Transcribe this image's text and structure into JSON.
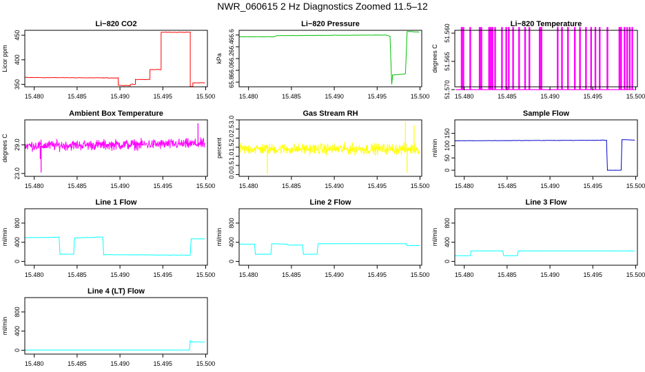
{
  "page": {
    "title": "NWR_060615  2 Hz Diagnostics Zoomed 11.5–12"
  },
  "chart_data": [
    {
      "type": "line",
      "title": "Li−820 CO2",
      "ylabel": "Licor ppm",
      "color": "#ff0000",
      "kind": "step",
      "xlim": [
        15.4789,
        15.5002
      ],
      "ylim": [
        345,
        460
      ],
      "xticks": [
        15.48,
        15.485,
        15.49,
        15.495,
        15.5
      ],
      "xtick_labels": [
        "15.480",
        "15.485",
        "15.490",
        "15.495",
        "15.500"
      ],
      "yticks": [
        350,
        400,
        450
      ],
      "ytick_labels": [
        "350",
        "400",
        "450"
      ],
      "x": [
        15.4789,
        15.4898,
        15.4898,
        15.4912,
        15.4912,
        15.4918,
        15.4918,
        15.4935,
        15.4935,
        15.4948,
        15.4948,
        15.4982,
        15.4982,
        15.4985,
        15.4985,
        15.4999
      ],
      "y": [
        364,
        363,
        348,
        347,
        350,
        350,
        360,
        360,
        380,
        380,
        456,
        456,
        346,
        345,
        353,
        353
      ],
      "noise": 0.8
    },
    {
      "type": "line",
      "title": "Li−820 Pressure",
      "ylabel": "kPa",
      "color": "#00c000",
      "kind": "step",
      "xlim": [
        15.4789,
        15.5002
      ],
      "ylim": [
        65.72,
        66.68
      ],
      "xticks": [
        15.48,
        15.485,
        15.49,
        15.495,
        15.5
      ],
      "xtick_labels": [
        "15.480",
        "15.485",
        "15.490",
        "15.495",
        "15.500"
      ],
      "yticks": [
        65.8,
        66.0,
        66.2,
        66.4,
        66.6
      ],
      "ytick_labels": [
        "65.8",
        "66.0",
        "66.2",
        "66.4",
        "66.6"
      ],
      "x": [
        15.4789,
        15.4829,
        15.4833,
        15.496,
        15.4965,
        15.4967,
        15.4968,
        15.4983,
        15.4985,
        15.4987,
        15.4999
      ],
      "y": [
        66.57,
        66.57,
        66.59,
        66.6,
        66.58,
        65.76,
        65.92,
        65.94,
        66.66,
        66.66,
        66.65
      ],
      "noise": 0.004
    },
    {
      "type": "line",
      "title": "Li−820 Temperature",
      "ylabel": "degrees C",
      "color": "#ff00ff",
      "kind": "spikes",
      "xlim": [
        15.4789,
        15.5002
      ],
      "ylim": [
        51.5695,
        51.5595
      ],
      "xticks": [
        15.48,
        15.485,
        15.49,
        15.495,
        15.5
      ],
      "xtick_labels": [
        "15.480",
        "15.485",
        "15.490",
        "15.495",
        "15.500"
      ],
      "yticks": [
        51.57,
        51.565,
        51.56
      ],
      "ytick_labels": [
        "51.570",
        "51.565",
        "51.560"
      ],
      "base": 51.57,
      "peak": 51.559,
      "x": [
        15.4797,
        15.4799,
        15.4807,
        15.4818,
        15.482,
        15.4829,
        15.4831,
        15.4833,
        15.4836,
        15.4844,
        15.4849,
        15.4852,
        15.4857,
        15.4864,
        15.4871,
        15.4876,
        15.4888,
        15.489,
        15.4909,
        15.4914,
        15.4921,
        15.4929,
        15.4935,
        15.4942,
        15.4948,
        15.4953,
        15.4958,
        15.4967,
        15.4981,
        15.4983,
        15.4987,
        15.499,
        15.4993,
        15.4996
      ],
      "noise": 0
    },
    {
      "type": "line",
      "title": "Ambient Box Temperature",
      "ylabel": "degrees C",
      "color": "#ff00ff",
      "kind": "noisy",
      "xlim": [
        15.4789,
        15.5002
      ],
      "ylim": [
        22.4,
        34.2
      ],
      "xticks": [
        15.48,
        15.485,
        15.49,
        15.495,
        15.5
      ],
      "xtick_labels": [
        "15.480",
        "15.485",
        "15.490",
        "15.495",
        "15.500"
      ],
      "yticks": [
        23.0,
        29.0
      ],
      "ytick_labels": [
        "23.0",
        "29.0"
      ],
      "x": [
        15.4789,
        15.4999
      ],
      "y": [
        28.8,
        29.2
      ],
      "spikes": [
        [
          15.4808,
          23.2
        ],
        [
          15.4807,
          26.0
        ],
        [
          15.4991,
          33.5
        ]
      ],
      "noise": 1.6
    },
    {
      "type": "line",
      "title": "Gas Stream RH",
      "ylabel": "percent",
      "color": "#ffff00",
      "kind": "noisy",
      "xlim": [
        15.4789,
        15.5002
      ],
      "ylim": [
        -0.1,
        3.0
      ],
      "xticks": [
        15.48,
        15.485,
        15.49,
        15.495,
        15.5
      ],
      "xtick_labels": [
        "15.480",
        "15.485",
        "15.490",
        "15.495",
        "15.500"
      ],
      "yticks": [
        0.0,
        0.5,
        1.0,
        1.5,
        2.0,
        2.5,
        3.0
      ],
      "ytick_labels": [
        "0.0",
        "0.5",
        "1.0",
        "1.5",
        "2.0",
        "2.5",
        "3.0"
      ],
      "x": [
        15.4789,
        15.4999
      ],
      "y": [
        1.4,
        1.4
      ],
      "spikes": [
        [
          15.4983,
          2.9
        ],
        [
          15.4985,
          0.1
        ],
        [
          15.4822,
          0.05
        ],
        [
          15.4993,
          2.7
        ]
      ],
      "noise": 0.45
    },
    {
      "type": "line",
      "title": "Sample Flow",
      "ylabel": "ml/min",
      "color": "#0000cc",
      "kind": "step",
      "xlim": [
        15.4789,
        15.5002
      ],
      "ylim": [
        -25,
        205
      ],
      "xticks": [
        15.48,
        15.485,
        15.49,
        15.495,
        15.5
      ],
      "xtick_labels": [
        "15.480",
        "15.485",
        "15.490",
        "15.495",
        "15.500"
      ],
      "yticks": [
        0,
        50,
        100,
        150
      ],
      "ytick_labels": [
        "0",
        "50",
        "100",
        "150"
      ],
      "x": [
        15.4789,
        15.4966,
        15.4967,
        15.4983,
        15.4984,
        15.4999
      ],
      "y": [
        120,
        122,
        0,
        0,
        125,
        122
      ],
      "noise": 1.2
    },
    {
      "type": "line",
      "title": "Line 1 Flow",
      "ylabel": "ml/min",
      "color": "#00ffff",
      "kind": "step",
      "xlim": [
        15.4789,
        15.5002
      ],
      "ylim": [
        -80,
        1100
      ],
      "xticks": [
        15.48,
        15.485,
        15.49,
        15.495,
        15.5
      ],
      "xtick_labels": [
        "15.480",
        "15.485",
        "15.490",
        "15.495",
        "15.500"
      ],
      "yticks": [
        0,
        400,
        800
      ],
      "ytick_labels": [
        "0",
        "400",
        "800"
      ],
      "x": [
        15.4789,
        15.4829,
        15.483,
        15.4846,
        15.4847,
        15.488,
        15.4881,
        15.4982,
        15.4983,
        15.4999
      ],
      "y": [
        495,
        505,
        150,
        150,
        490,
        510,
        140,
        130,
        470,
        470
      ],
      "noise": 6
    },
    {
      "type": "line",
      "title": "Line 2 Flow",
      "ylabel": "ml/min",
      "color": "#00ffff",
      "kind": "step",
      "xlim": [
        15.4789,
        15.5002
      ],
      "ylim": [
        -80,
        1100
      ],
      "xticks": [
        15.48,
        15.485,
        15.49,
        15.495,
        15.5
      ],
      "xtick_labels": [
        "15.480",
        "15.485",
        "15.490",
        "15.495",
        "15.500"
      ],
      "yticks": [
        0,
        400,
        800
      ],
      "ytick_labels": [
        "0",
        "400",
        "800"
      ],
      "x": [
        15.4789,
        15.4807,
        15.4808,
        15.4826,
        15.4827,
        15.4845,
        15.4846,
        15.4863,
        15.4864,
        15.488,
        15.4881,
        15.4984,
        15.4985,
        15.4999
      ],
      "y": [
        360,
        360,
        150,
        150,
        370,
        360,
        340,
        340,
        150,
        150,
        370,
        370,
        330,
        330
      ],
      "noise": 3
    },
    {
      "type": "line",
      "title": "Line 3 Flow",
      "ylabel": "ml/min",
      "color": "#00ffff",
      "kind": "step",
      "xlim": [
        15.4789,
        15.5002
      ],
      "ylim": [
        -80,
        1100
      ],
      "xticks": [
        15.48,
        15.485,
        15.49,
        15.495,
        15.5
      ],
      "xtick_labels": [
        "15.480",
        "15.485",
        "15.490",
        "15.495",
        "15.500"
      ],
      "yticks": [
        0,
        400,
        800
      ],
      "ytick_labels": [
        "0",
        "400",
        "800"
      ],
      "x": [
        15.4789,
        15.4807,
        15.4808,
        15.4845,
        15.4846,
        15.4862,
        15.4863,
        15.4999
      ],
      "y": [
        120,
        120,
        220,
        220,
        120,
        120,
        220,
        220
      ],
      "noise": 3
    },
    {
      "type": "line",
      "title": "Line 4 (LT) Flow",
      "ylabel": "ml/min",
      "color": "#00ffff",
      "kind": "step",
      "xlim": [
        15.4789,
        15.5002
      ],
      "ylim": [
        -80,
        1100
      ],
      "xticks": [
        15.48,
        15.485,
        15.49,
        15.495,
        15.5
      ],
      "xtick_labels": [
        "15.480",
        "15.485",
        "15.490",
        "15.495",
        "15.500"
      ],
      "yticks": [
        0,
        400,
        800
      ],
      "ytick_labels": [
        "0",
        "400",
        "800"
      ],
      "x": [
        15.4789,
        15.4981,
        15.4982,
        15.4983,
        15.4999
      ],
      "y": [
        5,
        5,
        200,
        175,
        175
      ],
      "noise": 1
    }
  ]
}
